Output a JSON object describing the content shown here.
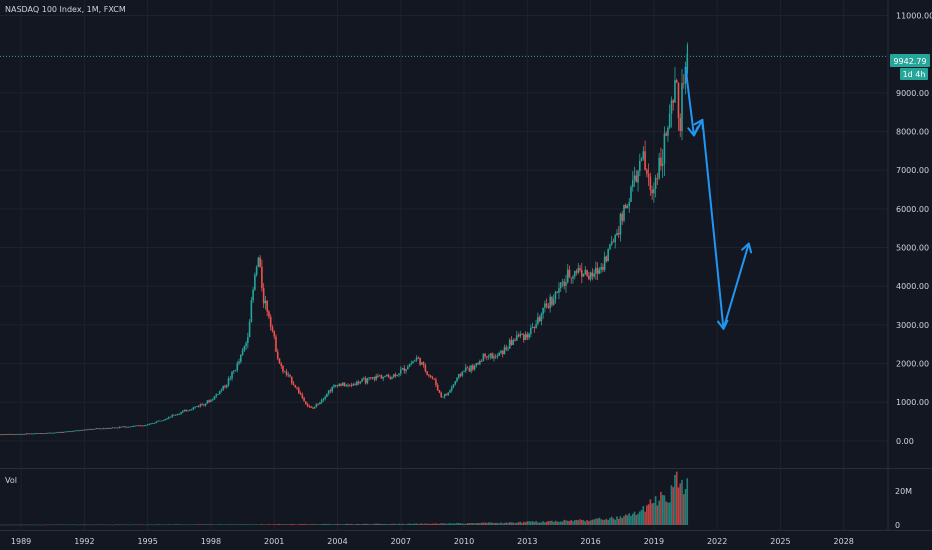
{
  "header": {
    "symbol_label": "NASDAQ 100 Index, 1M, FXCM"
  },
  "volume_pane": {
    "label": "Vol",
    "y_ticks": [
      "20M",
      "0"
    ]
  },
  "price_tag": {
    "value": "9942.79",
    "timer": "1d 4h"
  },
  "colors": {
    "background": "#131722",
    "up": "#26a69a",
    "down": "#ef5350",
    "grid": "#1e222d",
    "axis_text": "#d1d4dc",
    "price_line": "#26a69a",
    "projection": "#2196f3"
  },
  "chart_data": {
    "type": "candlestick",
    "title": "NASDAQ 100 Index, 1M, FXCM",
    "x_ticks": [
      "1989",
      "1992",
      "1995",
      "1998",
      "2001",
      "2004",
      "2007",
      "2010",
      "2013",
      "2016",
      "2019",
      "2022",
      "2025",
      "2028"
    ],
    "y_ticks": [
      "0.00",
      "1000.00",
      "2000.00",
      "3000.00",
      "4000.00",
      "5000.00",
      "6000.00",
      "7000.00",
      "8000.00",
      "9000.00",
      "11000.00"
    ],
    "x_range": [
      1988.0,
      2030.1
    ],
    "y_range": [
      -700,
      11400
    ],
    "last_price": 9942.79,
    "price_series": [
      [
        1988.0,
        170
      ],
      [
        1989.0,
        180
      ],
      [
        1990.0,
        200
      ],
      [
        1991.0,
        230
      ],
      [
        1992.0,
        290
      ],
      [
        1993.0,
        330
      ],
      [
        1994.0,
        370
      ],
      [
        1995.0,
        410
      ],
      [
        1996.0,
        620
      ],
      [
        1997.0,
        820
      ],
      [
        1998.0,
        1050
      ],
      [
        1998.7,
        1450
      ],
      [
        1999.3,
        2000
      ],
      [
        1999.7,
        2600
      ],
      [
        2000.1,
        4300
      ],
      [
        2000.25,
        4700
      ],
      [
        2000.5,
        3700
      ],
      [
        2000.8,
        3200
      ],
      [
        2001.0,
        2600
      ],
      [
        2001.3,
        1900
      ],
      [
        2001.6,
        1700
      ],
      [
        2001.9,
        1500
      ],
      [
        2002.3,
        1150
      ],
      [
        2002.6,
        900
      ],
      [
        2002.8,
        820
      ],
      [
        2003.2,
        1050
      ],
      [
        2003.6,
        1300
      ],
      [
        2004.0,
        1480
      ],
      [
        2004.5,
        1420
      ],
      [
        2005.0,
        1520
      ],
      [
        2005.5,
        1580
      ],
      [
        2006.0,
        1680
      ],
      [
        2006.5,
        1650
      ],
      [
        2007.0,
        1800
      ],
      [
        2007.8,
        2150
      ],
      [
        2008.2,
        1800
      ],
      [
        2008.6,
        1550
      ],
      [
        2008.9,
        1150
      ],
      [
        2009.2,
        1200
      ],
      [
        2009.6,
        1550
      ],
      [
        2010.0,
        1850
      ],
      [
        2010.5,
        1900
      ],
      [
        2011.0,
        2250
      ],
      [
        2011.5,
        2150
      ],
      [
        2012.0,
        2400
      ],
      [
        2012.5,
        2700
      ],
      [
        2013.0,
        2750
      ],
      [
        2013.5,
        3100
      ],
      [
        2014.0,
        3550
      ],
      [
        2014.5,
        3900
      ],
      [
        2015.0,
        4300
      ],
      [
        2015.5,
        4450
      ],
      [
        2016.0,
        4200
      ],
      [
        2016.5,
        4500
      ],
      [
        2017.0,
        5100
      ],
      [
        2017.5,
        5800
      ],
      [
        2018.0,
        6600
      ],
      [
        2018.5,
        7300
      ],
      [
        2018.9,
        6300
      ],
      [
        2019.1,
        6900
      ],
      [
        2019.5,
        7700
      ],
      [
        2019.9,
        8600
      ],
      [
        2020.1,
        9400
      ],
      [
        2020.2,
        7800
      ],
      [
        2020.4,
        9400
      ],
      [
        2020.6,
        9900
      ]
    ],
    "volume_series": [
      [
        1988.0,
        0.2
      ],
      [
        2000.0,
        0.4
      ],
      [
        2008.0,
        0.8
      ],
      [
        2012.0,
        1.5
      ],
      [
        2014.0,
        2.5
      ],
      [
        2016.0,
        3.5
      ],
      [
        2017.5,
        5.0
      ],
      [
        2018.5,
        10.0
      ],
      [
        2019.2,
        18.0
      ],
      [
        2019.8,
        22.0
      ],
      [
        2020.2,
        32.0
      ],
      [
        2020.5,
        27.0
      ]
    ],
    "projection": {
      "points": [
        [
          2020.5,
          9650
        ],
        [
          2020.9,
          7900
        ],
        [
          2021.3,
          8300
        ],
        [
          2022.3,
          2900
        ],
        [
          2023.5,
          5100
        ]
      ]
    }
  }
}
